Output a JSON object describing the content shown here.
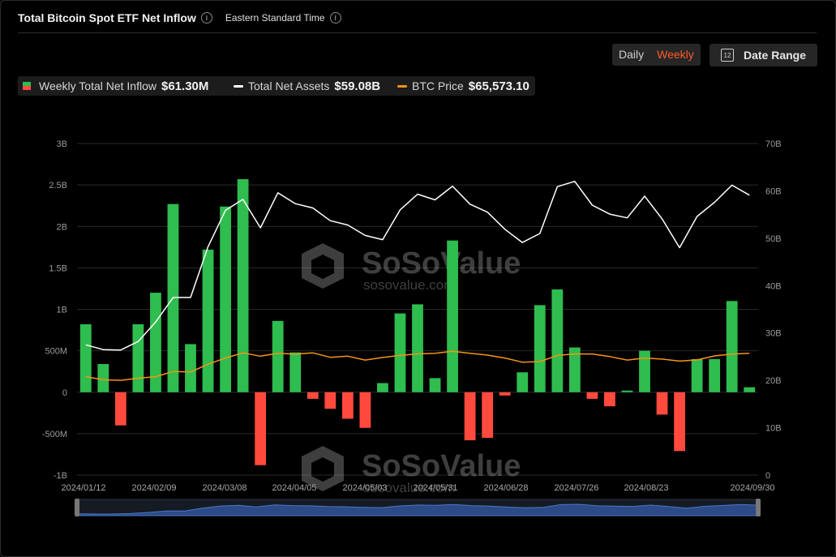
{
  "header": {
    "title": "Total Bitcoin Spot ETF Net Inflow",
    "timezone": "Eastern Standard Time",
    "info_icon": "info-icon"
  },
  "controls": {
    "daily_label": "Daily",
    "weekly_label": "Weekly",
    "date_range_label": "Date Range",
    "calendar_icon_text": "12",
    "active_color": "#ff5a2a"
  },
  "legend": {
    "inflow_label": "Weekly Total Net Inflow",
    "inflow_value": "$61.30M",
    "assets_label": "Total Net Assets",
    "assets_value": "$59.08B",
    "btc_label": "BTC Price",
    "btc_value": "$65,573.10"
  },
  "watermark": {
    "brand": "SoSoValue",
    "url": "sosovalue.com"
  },
  "colors": {
    "positive": "#2ebd4e",
    "negative": "#ff4a3d",
    "assets_line": "#ffffff",
    "btc_line": "#f7931a",
    "grid": "#2a2a2a"
  },
  "chart_data": {
    "type": "bar",
    "title": "Total Bitcoin Spot ETF Net Inflow",
    "x_tick_labels": [
      "2024/01/12",
      "2024/02/09",
      "2024/03/08",
      "2024/04/05",
      "2024/05/03",
      "2024/05/31",
      "2024/06/28",
      "2024/07/26",
      "2024/08/23",
      "2024/09/30"
    ],
    "left_axis": {
      "labels": [
        "3B",
        "2.5B",
        "2B",
        "1.5B",
        "1B",
        "500M",
        "0",
        "-500M",
        "-1B"
      ],
      "min": -1000,
      "max": 3000,
      "unit": "M"
    },
    "right_axis": {
      "labels": [
        "70B",
        "60B",
        "50B",
        "40B",
        "30B",
        "20B",
        "10B",
        "0"
      ],
      "min": 0,
      "max": 70,
      "unit": "B"
    },
    "grid": true,
    "legend_position": "top-left",
    "x": [
      "2024/01/12",
      "2024/01/19",
      "2024/01/26",
      "2024/02/02",
      "2024/02/09",
      "2024/02/16",
      "2024/02/23",
      "2024/03/01",
      "2024/03/08",
      "2024/03/15",
      "2024/03/22",
      "2024/03/29",
      "2024/04/05",
      "2024/04/12",
      "2024/04/19",
      "2024/04/26",
      "2024/05/03",
      "2024/05/10",
      "2024/05/17",
      "2024/05/24",
      "2024/05/31",
      "2024/06/07",
      "2024/06/14",
      "2024/06/21",
      "2024/06/28",
      "2024/07/05",
      "2024/07/12",
      "2024/07/19",
      "2024/07/26",
      "2024/08/02",
      "2024/08/09",
      "2024/08/16",
      "2024/08/23",
      "2024/08/30",
      "2024/09/06",
      "2024/09/13",
      "2024/09/20",
      "2024/09/27",
      "2024/09/30"
    ],
    "series": [
      {
        "name": "Weekly Total Net Inflow",
        "unit": "M",
        "type": "bar",
        "values": [
          820,
          340,
          -400,
          820,
          1200,
          2270,
          580,
          1720,
          2240,
          2570,
          -880,
          860,
          480,
          -80,
          -200,
          -320,
          -430,
          110,
          950,
          1060,
          170,
          1830,
          -580,
          -550,
          -40,
          240,
          1050,
          1240,
          540,
          -80,
          -170,
          20,
          500,
          -270,
          -710,
          400,
          400,
          1100,
          60
        ]
      },
      {
        "name": "Total Net Assets",
        "unit": "B",
        "type": "line",
        "values": [
          27.5,
          26.5,
          26.4,
          28.2,
          32.3,
          37.5,
          37.5,
          48.2,
          55.9,
          58.2,
          52.2,
          59.6,
          57.3,
          56.4,
          53.7,
          52.8,
          50.6,
          49.7,
          56.0,
          59.3,
          58.1,
          61.0,
          57.2,
          55.5,
          51.9,
          49.1,
          51.0,
          60.9,
          62.0,
          57.0,
          55.1,
          54.3,
          58.9,
          54.1,
          48.0,
          54.6,
          57.6,
          61.2,
          59.1
        ]
      },
      {
        "name": "BTC Price",
        "unit": "K$",
        "type": "line",
        "values": [
          43.0,
          40.0,
          39.5,
          41.5,
          43.0,
          48.0,
          47.5,
          55.0,
          61.0,
          66.0,
          62.8,
          65.5,
          64.7,
          66.0,
          61.7,
          62.8,
          59.0,
          61.5,
          63.5,
          65.0,
          65.5,
          67.5,
          65.5,
          63.8,
          61.0,
          57.0,
          57.5,
          63.5,
          65.0,
          64.9,
          62.5,
          59.0,
          61.0,
          60.0,
          58.0,
          59.2,
          63.0,
          64.8,
          65.6
        ]
      }
    ]
  }
}
